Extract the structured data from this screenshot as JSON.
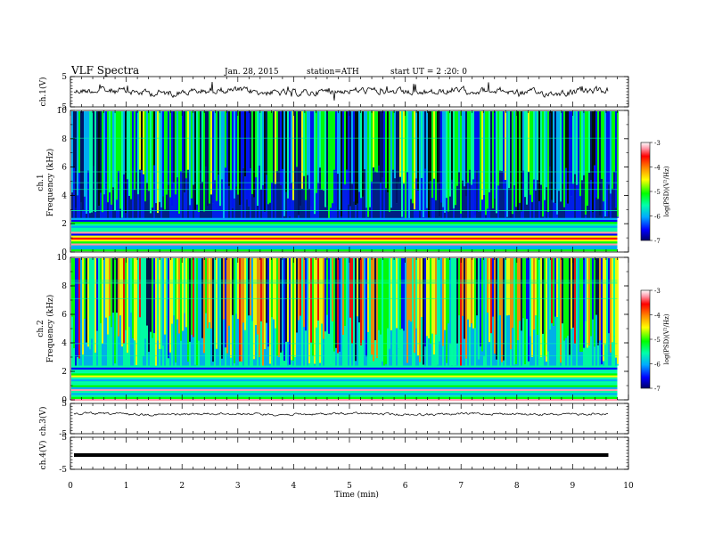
{
  "header": {
    "title": "VLF  Spectra",
    "date": "Jan. 28, 2015",
    "station": "station=ATH",
    "start": "start  UT =  2 :20: 0"
  },
  "chart_data": [
    {
      "id": "ch1-wave",
      "type": "line",
      "ylabel": "ch.1(V)",
      "ylim": [
        -5,
        5
      ],
      "yticks": [
        "5",
        "-5"
      ],
      "xlim": [
        0,
        10
      ]
    },
    {
      "id": "ch1-spec",
      "type": "heatmap",
      "ylabel": "ch.1",
      "ylabel2": "Frequency  (kHz)",
      "ylim": [
        0,
        10
      ],
      "yticks": [
        "10",
        "8",
        "6",
        "4",
        "2",
        "0"
      ],
      "xlim": [
        0,
        10
      ],
      "data_end_min": 9.8
    },
    {
      "id": "ch2-spec",
      "type": "heatmap",
      "ylabel": "ch.2",
      "ylabel2": "Frequency  (kHz)",
      "ylim": [
        0,
        10
      ],
      "yticks": [
        "10",
        "8",
        "6",
        "4",
        "2",
        "0"
      ],
      "xlim": [
        0,
        10
      ],
      "data_end_min": 9.8
    },
    {
      "id": "ch3-wave",
      "type": "line",
      "ylabel": "ch.3(V)",
      "ylim": [
        -5,
        5
      ],
      "yticks": [
        "5",
        "-5"
      ]
    },
    {
      "id": "ch4-wave",
      "type": "line",
      "ylabel": "ch.4(V)",
      "ylim": [
        -5,
        5
      ],
      "yticks": [
        "5",
        "-5"
      ]
    }
  ],
  "colorbar": {
    "label": "log(PSD)(V²/Hz)",
    "ticks": [
      "-3",
      "-4",
      "-5",
      "-6",
      "-7"
    ],
    "range": [
      -7,
      -3
    ],
    "colors": [
      "#000066",
      "#0000ff",
      "#00aaff",
      "#00ffaa",
      "#00ff00",
      "#ffff00",
      "#ff8800",
      "#ff0000",
      "#ff99aa",
      "#ffffff"
    ]
  },
  "xaxis": {
    "label": "Time  (min)",
    "ticks": [
      "0",
      "1",
      "2",
      "3",
      "4",
      "5",
      "6",
      "7",
      "8",
      "9",
      "10"
    ],
    "range": [
      0,
      10
    ]
  }
}
